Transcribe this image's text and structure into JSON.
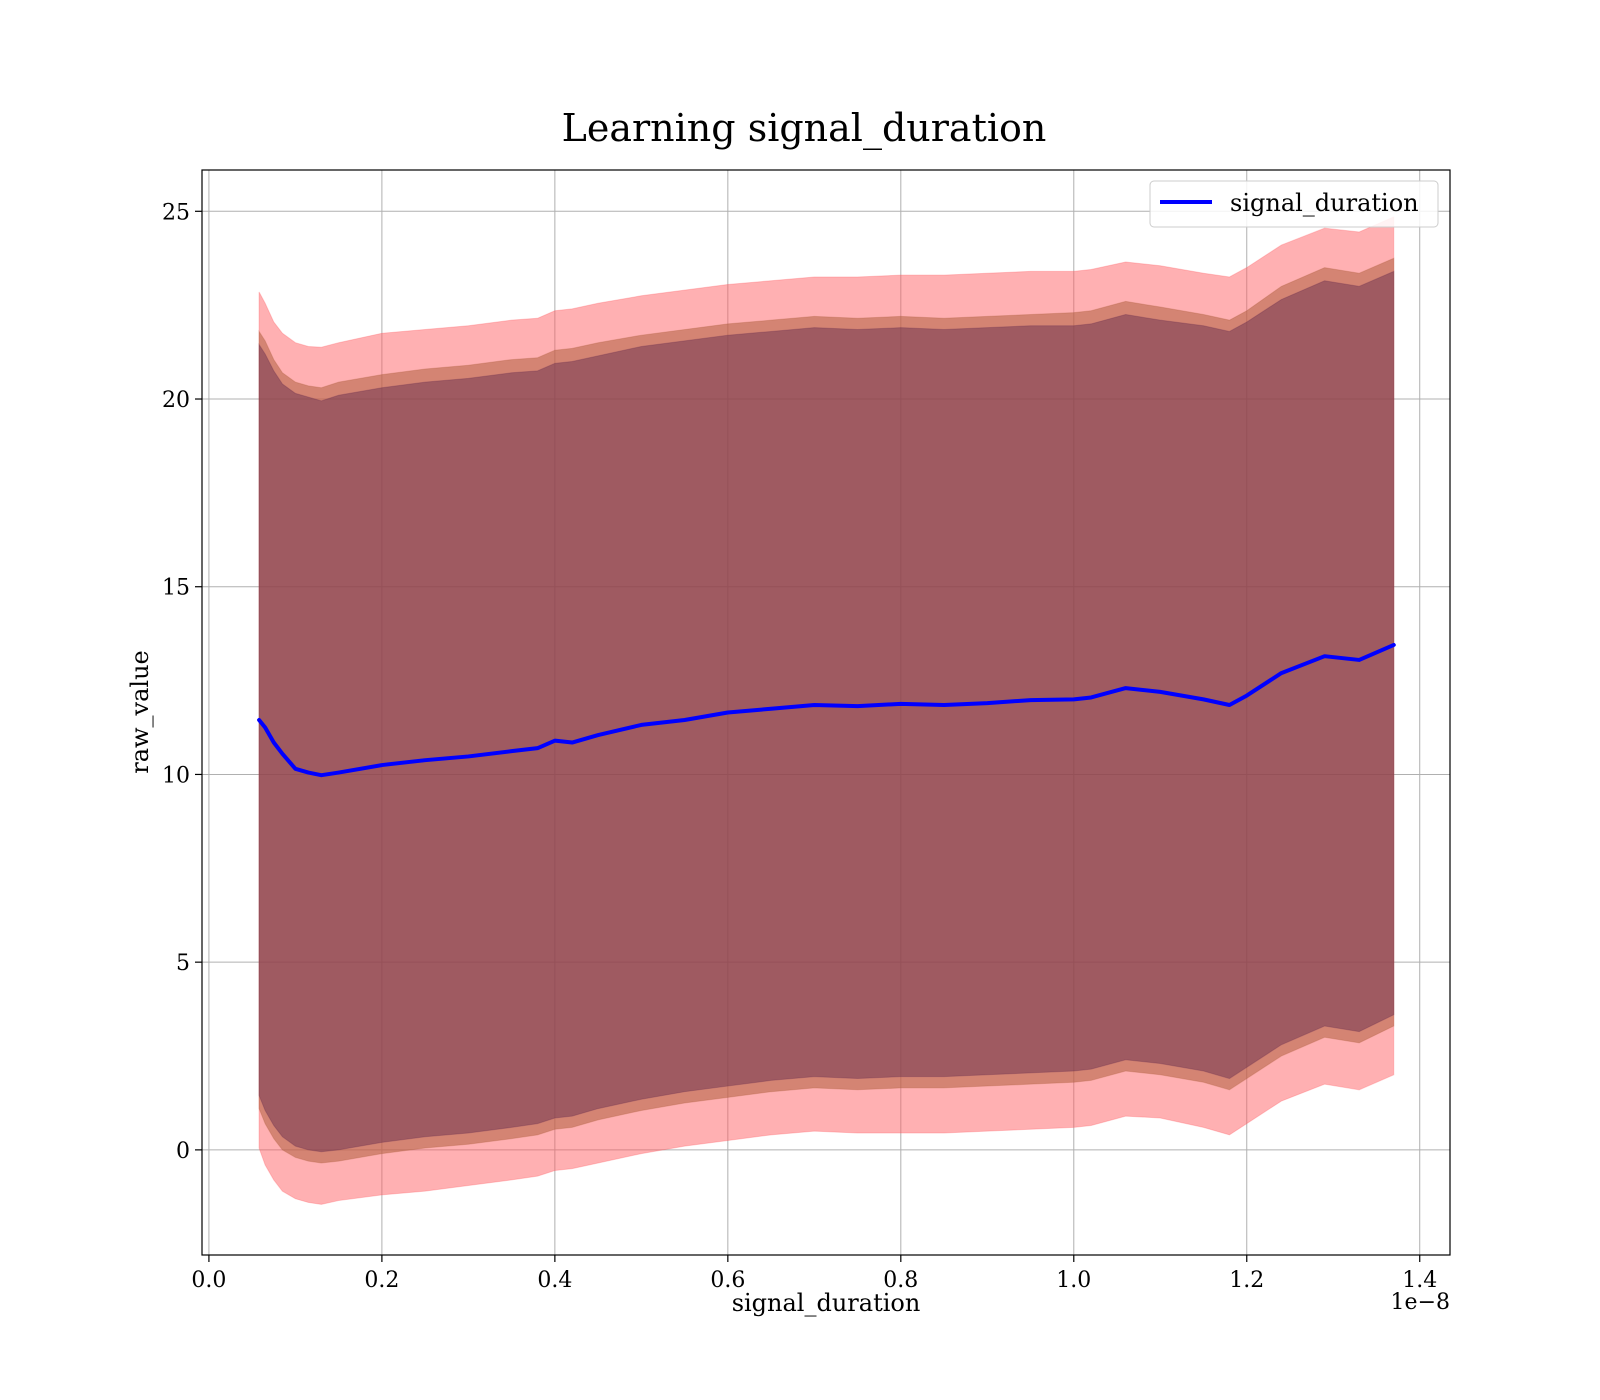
{
  "chart_data": {
    "type": "area",
    "title": "Learning signal_duration",
    "xlabel": "signal_duration",
    "ylabel": "raw_value",
    "x_offset_label": "1e−8",
    "xlim": [
      -0.008,
      1.435
    ],
    "ylim": [
      -2.8,
      26.1
    ],
    "xticks": [
      0.0,
      0.2,
      0.4,
      0.6,
      0.8,
      1.0,
      1.2,
      1.4
    ],
    "xtick_labels": [
      "0.0",
      "0.2",
      "0.4",
      "0.6",
      "0.8",
      "1.0",
      "1.2",
      "1.4"
    ],
    "yticks": [
      0,
      5,
      10,
      15,
      20,
      25
    ],
    "ytick_labels": [
      "0",
      "5",
      "10",
      "15",
      "20",
      "25"
    ],
    "grid": true,
    "legend_position": "top-right",
    "x": [
      0.058,
      0.065,
      0.075,
      0.085,
      0.1,
      0.115,
      0.13,
      0.15,
      0.2,
      0.25,
      0.3,
      0.35,
      0.38,
      0.4,
      0.42,
      0.45,
      0.5,
      0.55,
      0.6,
      0.65,
      0.7,
      0.75,
      0.8,
      0.85,
      0.9,
      0.95,
      1.0,
      1.02,
      1.06,
      1.1,
      1.15,
      1.18,
      1.2,
      1.24,
      1.29,
      1.33,
      1.37
    ],
    "series": [
      {
        "name": "signal_duration",
        "color": "#0000ff",
        "values": [
          11.45,
          11.25,
          10.85,
          10.55,
          10.15,
          10.05,
          9.98,
          10.05,
          10.25,
          10.38,
          10.48,
          10.62,
          10.7,
          10.9,
          10.85,
          11.05,
          11.32,
          11.45,
          11.65,
          11.75,
          11.85,
          11.82,
          11.88,
          11.85,
          11.9,
          11.98,
          12.0,
          12.05,
          12.3,
          12.2,
          12.0,
          11.85,
          12.1,
          12.7,
          13.15,
          13.05,
          13.45
        ]
      }
    ],
    "bands": [
      {
        "color": "#ff5a5f",
        "opacity": 0.48,
        "upper": [
          22.85,
          22.55,
          22.05,
          21.75,
          21.5,
          21.4,
          21.38,
          21.5,
          21.75,
          21.85,
          21.95,
          22.1,
          22.15,
          22.35,
          22.4,
          22.55,
          22.75,
          22.9,
          23.05,
          23.15,
          23.25,
          23.25,
          23.3,
          23.3,
          23.35,
          23.4,
          23.4,
          23.45,
          23.65,
          23.55,
          23.35,
          23.25,
          23.5,
          24.1,
          24.55,
          24.45,
          24.85
        ],
        "lower": [
          0.05,
          -0.4,
          -0.8,
          -1.1,
          -1.3,
          -1.4,
          -1.45,
          -1.35,
          -1.2,
          -1.1,
          -0.95,
          -0.8,
          -0.7,
          -0.55,
          -0.5,
          -0.35,
          -0.1,
          0.1,
          0.25,
          0.4,
          0.5,
          0.45,
          0.45,
          0.45,
          0.5,
          0.55,
          0.6,
          0.65,
          0.9,
          0.85,
          0.6,
          0.4,
          0.7,
          1.3,
          1.75,
          1.6,
          2.0
        ]
      },
      {
        "color": "#b06040",
        "opacity": 0.55,
        "upper": [
          21.8,
          21.55,
          21.05,
          20.7,
          20.45,
          20.35,
          20.3,
          20.45,
          20.65,
          20.8,
          20.9,
          21.05,
          21.1,
          21.3,
          21.35,
          21.5,
          21.7,
          21.85,
          22.0,
          22.1,
          22.2,
          22.15,
          22.2,
          22.15,
          22.2,
          22.25,
          22.3,
          22.35,
          22.6,
          22.45,
          22.25,
          22.1,
          22.35,
          23.0,
          23.5,
          23.35,
          23.75
        ],
        "lower": [
          1.1,
          0.7,
          0.3,
          0.0,
          -0.2,
          -0.3,
          -0.35,
          -0.3,
          -0.1,
          0.05,
          0.15,
          0.3,
          0.4,
          0.55,
          0.6,
          0.8,
          1.05,
          1.25,
          1.4,
          1.55,
          1.65,
          1.6,
          1.65,
          1.65,
          1.7,
          1.75,
          1.8,
          1.85,
          2.1,
          2.0,
          1.8,
          1.6,
          1.9,
          2.5,
          3.0,
          2.85,
          3.3
        ]
      },
      {
        "color": "#6a3050",
        "opacity": 0.5,
        "upper": [
          21.45,
          21.2,
          20.75,
          20.4,
          20.15,
          20.05,
          19.95,
          20.1,
          20.3,
          20.45,
          20.55,
          20.7,
          20.75,
          20.95,
          21.0,
          21.15,
          21.4,
          21.55,
          21.7,
          21.8,
          21.9,
          21.85,
          21.9,
          21.85,
          21.9,
          21.95,
          21.95,
          22.0,
          22.25,
          22.1,
          21.95,
          21.8,
          22.05,
          22.65,
          23.15,
          23.0,
          23.4
        ],
        "lower": [
          1.45,
          1.05,
          0.65,
          0.35,
          0.1,
          0.0,
          -0.05,
          0.0,
          0.2,
          0.35,
          0.45,
          0.6,
          0.7,
          0.85,
          0.9,
          1.1,
          1.35,
          1.55,
          1.7,
          1.85,
          1.95,
          1.9,
          1.95,
          1.95,
          2.0,
          2.05,
          2.1,
          2.15,
          2.4,
          2.3,
          2.1,
          1.9,
          2.2,
          2.8,
          3.3,
          3.15,
          3.6
        ]
      }
    ]
  }
}
